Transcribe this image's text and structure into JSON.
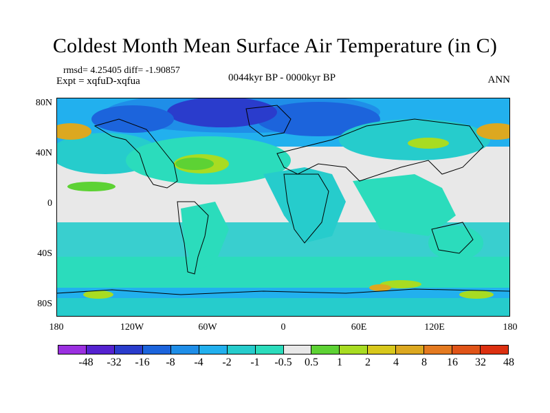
{
  "title": "Coldest Month Mean Surface Air Temperature (in C)",
  "stats": "rmsd= 4.25405 diff= -1.90857",
  "experiment": "Expt = xqfuD-xqfua",
  "period": "0044kyr BP - 0000kyr BP",
  "season": "ANN",
  "axes": {
    "lat_labels": [
      "80N",
      "40N",
      "0",
      "40S",
      "80S"
    ],
    "lon_labels": [
      "180",
      "120W",
      "60W",
      "0",
      "60E",
      "120E",
      "180"
    ]
  },
  "colorbar": {
    "colors": [
      "#9b30e0",
      "#5522d0",
      "#2a3ccc",
      "#1c64dc",
      "#1f8ee8",
      "#22b0ee",
      "#26cccc",
      "#2bdcbc",
      "#e8e8e8",
      "#5dd234",
      "#a8dc22",
      "#d8c81c",
      "#dca820",
      "#e47a20",
      "#e05418",
      "#dc3010"
    ],
    "labels": [
      "-48",
      "-32",
      "-16",
      "-8",
      "-4",
      "-2",
      "-1",
      "-0.5",
      "0.5",
      "1",
      "2",
      "4",
      "8",
      "16",
      "32",
      "48"
    ]
  }
}
